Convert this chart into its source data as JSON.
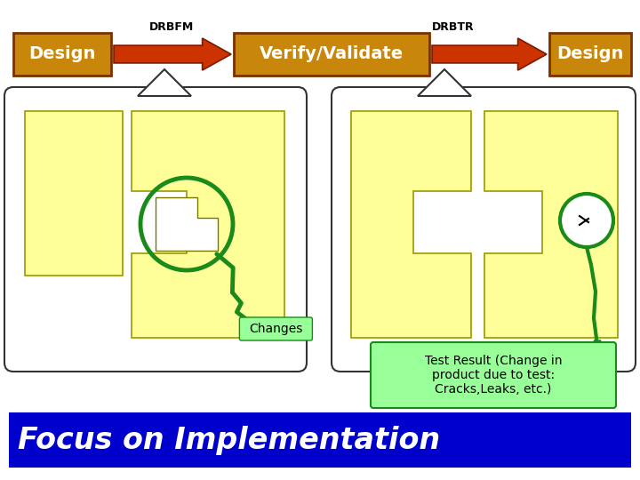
{
  "bg_color": "#ffffff",
  "box_fill_gold": "#c8860a",
  "box_fill_yellow": "#ffff99",
  "arrow_color": "#cc3300",
  "green_color": "#1a8a1a",
  "green_fill": "#99ff99",
  "blue_bar_color": "#0000cc",
  "blue_bar_text": "#ffffff",
  "title_text": "Focus on Implementation",
  "box1_label": "Design",
  "box2_label": "Verify/Validate",
  "box3_label": "Design",
  "arrow1_label": "DRBFM",
  "arrow2_label": "DRBTR",
  "changes_label": "Changes",
  "test_result_label": "Test Result (Change in\nproduct due to test:\nCracks,Leaks, etc.)"
}
